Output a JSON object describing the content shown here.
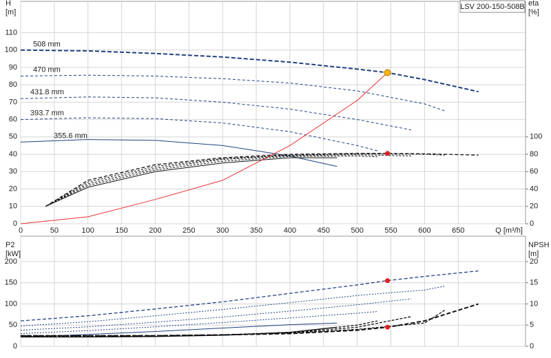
{
  "chart_data": [
    {
      "type": "line",
      "model_label": "LSV 200-150-508B",
      "y_label": [
        "H",
        "[m]"
      ],
      "y2_label": [
        "eta",
        "[%]"
      ],
      "x_label": "Q [m³/h]",
      "xlim": [
        0,
        750
      ],
      "xticks": [
        0,
        50,
        100,
        150,
        200,
        250,
        300,
        350,
        400,
        450,
        500,
        550,
        600,
        650
      ],
      "ylim": [
        0,
        128
      ],
      "yticks": [
        0,
        10,
        20,
        30,
        40,
        50,
        60,
        70,
        80,
        90,
        100,
        110
      ],
      "y2lim": [
        0,
        256
      ],
      "y2ticks": [
        0,
        20,
        40,
        60,
        80,
        100
      ],
      "grid": true,
      "series": [
        {
          "name": "508 mm",
          "color": "#1f3f7f",
          "dash": "6,3",
          "width": 2,
          "x": [
            0,
            100,
            200,
            300,
            400,
            500,
            545,
            600,
            680
          ],
          "values": [
            100,
            99.5,
            98,
            96,
            93,
            89,
            87,
            83,
            76
          ]
        },
        {
          "name": "470 mm",
          "color": "#1f3f7f",
          "dash": "4,3",
          "width": 1,
          "x": [
            0,
            100,
            200,
            300,
            400,
            500,
            600,
            630
          ],
          "values": [
            85,
            85.5,
            85,
            83.5,
            81,
            76.5,
            69,
            65
          ]
        },
        {
          "name": "431.8 mm",
          "color": "#1f3f7f",
          "dash": "4,3",
          "width": 1,
          "x": [
            0,
            100,
            200,
            300,
            400,
            500,
            580
          ],
          "values": [
            72,
            73,
            72.5,
            70,
            66,
            60,
            54
          ]
        },
        {
          "name": "393.7 mm",
          "color": "#1f3f7f",
          "dash": "4,3",
          "width": 1,
          "x": [
            0,
            100,
            200,
            300,
            400,
            500,
            530
          ],
          "values": [
            60,
            61,
            60.5,
            58,
            53,
            45,
            42
          ]
        },
        {
          "name": "355.6 mm",
          "color": "#1f3f7f",
          "width": 1,
          "x": [
            0,
            100,
            200,
            300,
            400,
            470
          ],
          "values": [
            47,
            48.5,
            48,
            45,
            39,
            33
          ]
        },
        {
          "axis": "y2",
          "color": "#111",
          "dash": "5,3",
          "width": 1.3,
          "x": [
            37,
            100,
            200,
            300,
            400,
            500,
            545,
            600,
            680
          ],
          "values": [
            20,
            50,
            68,
            76,
            80,
            81,
            81,
            80.5,
            79
          ]
        },
        {
          "axis": "y2",
          "color": "#111",
          "dash": "3,2",
          "width": 1,
          "x": [
            37,
            100,
            200,
            300,
            400,
            500,
            600,
            630
          ],
          "values": [
            20,
            48,
            66,
            75,
            79,
            80.5,
            80,
            79
          ]
        },
        {
          "axis": "y2",
          "color": "#111",
          "dash": "3,2",
          "width": 1,
          "x": [
            37,
            100,
            200,
            300,
            400,
            500,
            580
          ],
          "values": [
            20,
            46,
            64,
            74,
            78.5,
            79.5,
            78
          ]
        },
        {
          "axis": "y2",
          "color": "#111",
          "dash": "3,2",
          "width": 1,
          "x": [
            37,
            100,
            200,
            300,
            400,
            500,
            530
          ],
          "values": [
            20,
            44,
            62,
            72,
            77.5,
            78,
            77
          ]
        },
        {
          "axis": "y2",
          "color": "#111",
          "width": 1,
          "x": [
            37,
            100,
            200,
            300,
            400,
            470
          ],
          "values": [
            20,
            42,
            60,
            70,
            76,
            76
          ]
        },
        {
          "color": "#e83030",
          "width": 1,
          "x": [
            0,
            100,
            200,
            300,
            400,
            500,
            545
          ],
          "values": [
            0,
            4,
            14,
            25,
            45,
            71,
            87
          ]
        }
      ],
      "points": [
        {
          "x": 545,
          "y": 87,
          "color": "#f5b800"
        },
        {
          "x": 545,
          "y": 81,
          "axis": "y2",
          "color": "#e02020"
        }
      ]
    },
    {
      "type": "line",
      "y_label": [
        "P2",
        "[kW]"
      ],
      "y2_label": [
        "NPSH",
        "[m]"
      ],
      "xlim": [
        0,
        750
      ],
      "xticks": [
        0,
        50,
        100,
        150,
        200,
        250,
        300,
        350,
        400,
        450,
        500,
        550,
        600,
        650
      ],
      "ylim": [
        0,
        260
      ],
      "yticks": [
        0,
        50,
        100,
        150,
        200
      ],
      "y2lim": [
        0,
        26
      ],
      "y2ticks": [
        0,
        5,
        10,
        15,
        20
      ],
      "grid": true,
      "series": [
        {
          "color": "#1f3f7f",
          "dash": "5,3",
          "width": 1.3,
          "x": [
            0,
            100,
            200,
            300,
            400,
            500,
            545,
            600,
            680
          ],
          "values": [
            60,
            72,
            88,
            105,
            125,
            145,
            155,
            165,
            178
          ]
        },
        {
          "color": "#1f3f7f",
          "dash": "2,2",
          "width": 1,
          "x": [
            0,
            100,
            200,
            300,
            400,
            500,
            600,
            630
          ],
          "values": [
            48,
            58,
            72,
            87,
            103,
            120,
            133,
            142
          ]
        },
        {
          "color": "#1f3f7f",
          "dash": "2,2",
          "width": 1,
          "x": [
            0,
            100,
            200,
            300,
            400,
            500,
            580
          ],
          "values": [
            38,
            46,
            57,
            69,
            83,
            98,
            112
          ]
        },
        {
          "color": "#1f3f7f",
          "dash": "2,2",
          "width": 1,
          "x": [
            0,
            100,
            200,
            300,
            400,
            500,
            530
          ],
          "values": [
            30,
            37,
            46,
            56,
            67,
            78,
            82
          ]
        },
        {
          "color": "#1f3f7f",
          "width": 1,
          "x": [
            0,
            100,
            200,
            300,
            400,
            470
          ],
          "values": [
            22,
            28,
            35,
            43,
            51,
            55
          ]
        },
        {
          "axis": "y2",
          "color": "#111",
          "dash": "6,3",
          "width": 2,
          "x": [
            0,
            100,
            200,
            300,
            400,
            500,
            545,
            600,
            680
          ],
          "values": [
            2.5,
            2.5,
            2.5,
            2.7,
            3,
            3.8,
            4.5,
            6,
            10
          ]
        },
        {
          "axis": "y2",
          "color": "#111",
          "dash": "4,2",
          "width": 1.3,
          "x": [
            0,
            100,
            200,
            300,
            400,
            500,
            600,
            630
          ],
          "values": [
            2.5,
            2.5,
            2.5,
            2.7,
            3.1,
            4,
            5.5,
            8.5
          ]
        },
        {
          "axis": "y2",
          "color": "#111",
          "dash": "4,2",
          "width": 1.3,
          "x": [
            0,
            100,
            200,
            300,
            400,
            500,
            580
          ],
          "values": [
            2.4,
            2.4,
            2.5,
            2.7,
            3.2,
            4.5,
            7
          ]
        },
        {
          "axis": "y2",
          "color": "#111",
          "dash": "4,2",
          "width": 1.3,
          "x": [
            0,
            100,
            200,
            300,
            400,
            500,
            530
          ],
          "values": [
            2.3,
            2.3,
            2.4,
            2.7,
            3.3,
            5,
            6
          ]
        },
        {
          "axis": "y2",
          "color": "#111",
          "width": 1.3,
          "x": [
            0,
            100,
            200,
            300,
            400,
            470
          ],
          "values": [
            2.2,
            2.2,
            2.3,
            2.6,
            3.3,
            4.5
          ]
        }
      ],
      "points": [
        {
          "x": 545,
          "y": 155,
          "color": "#e02020"
        },
        {
          "x": 545,
          "y": 4.5,
          "axis": "y2",
          "color": "#e02020"
        }
      ]
    }
  ]
}
